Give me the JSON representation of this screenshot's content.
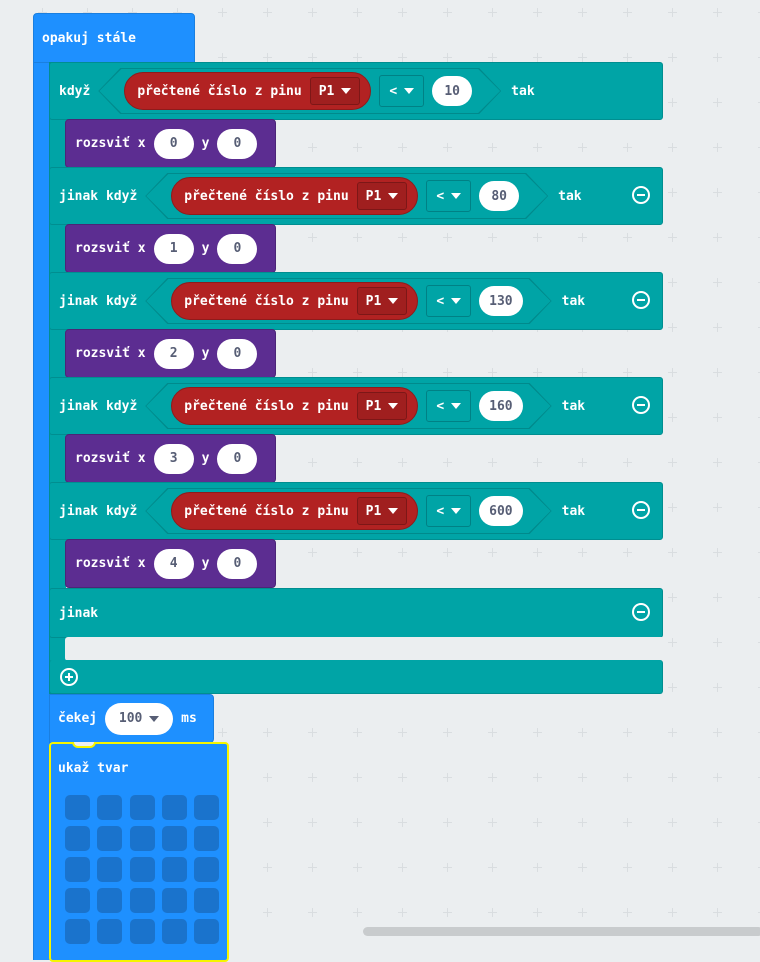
{
  "colors": {
    "loops": "#1e90ff",
    "logic": "#00a4a6",
    "pins": "#b22222",
    "led": "#5c2d91",
    "highlight": "#f5f500",
    "workspace": "#ebeef0"
  },
  "forever": {
    "label": "opakuj stále"
  },
  "if_block": {
    "branches": [
      {
        "label": "když",
        "sensor": "přečtené číslo z pinu",
        "pin": "P1",
        "operator": "<",
        "value": "10",
        "then": "tak",
        "removable": false,
        "body": {
          "label": "rozsviť",
          "x_label": "x",
          "x": "0",
          "y_label": "y",
          "y": "0"
        }
      },
      {
        "label": "jinak když",
        "sensor": "přečtené číslo z pinu",
        "pin": "P1",
        "operator": "<",
        "value": "80",
        "then": "tak",
        "removable": true,
        "body": {
          "label": "rozsviť",
          "x_label": "x",
          "x": "1",
          "y_label": "y",
          "y": "0"
        }
      },
      {
        "label": "jinak když",
        "sensor": "přečtené číslo z pinu",
        "pin": "P1",
        "operator": "<",
        "value": "130",
        "then": "tak",
        "removable": true,
        "body": {
          "label": "rozsviť",
          "x_label": "x",
          "x": "2",
          "y_label": "y",
          "y": "0"
        }
      },
      {
        "label": "jinak když",
        "sensor": "přečtené číslo z pinu",
        "pin": "P1",
        "operator": "<",
        "value": "160",
        "then": "tak",
        "removable": true,
        "body": {
          "label": "rozsviť",
          "x_label": "x",
          "x": "3",
          "y_label": "y",
          "y": "0"
        }
      },
      {
        "label": "jinak když",
        "sensor": "přečtené číslo z pinu",
        "pin": "P1",
        "operator": "<",
        "value": "600",
        "then": "tak",
        "removable": true,
        "body": {
          "label": "rozsviť",
          "x_label": "x",
          "x": "4",
          "y_label": "y",
          "y": "0"
        }
      }
    ],
    "else_label": "jinak",
    "icons": {
      "remove": "minus-circle-icon",
      "add": "plus-circle-icon"
    }
  },
  "wait": {
    "label": "čekej",
    "value": "100",
    "unit": "ms"
  },
  "show_leds": {
    "label": "ukaž tvar",
    "leds": [
      [
        0,
        0,
        0,
        0,
        0
      ],
      [
        0,
        0,
        0,
        0,
        0
      ],
      [
        0,
        0,
        0,
        0,
        0
      ],
      [
        0,
        0,
        0,
        0,
        0
      ],
      [
        0,
        0,
        0,
        0,
        0
      ]
    ]
  }
}
